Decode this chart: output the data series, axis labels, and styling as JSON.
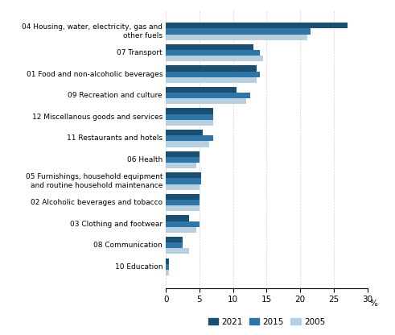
{
  "categories": [
    "04 Housing, water, electricity, gas and\nother fuels",
    "07 Transport",
    "01 Food and non-alcoholic beverages",
    "09 Recreation and culture",
    "12 Miscellanous goods and services",
    "11 Restaurants and hotels",
    "06 Health",
    "05 Furnishings, household equipment\nand routine household maintenance",
    "02 Alcoholic beverages and tobacco",
    "03 Clothing and footwear",
    "08 Communication",
    "10 Education"
  ],
  "values_2021": [
    27.0,
    13.0,
    13.5,
    10.5,
    7.0,
    5.5,
    5.0,
    5.2,
    5.0,
    3.5,
    2.5,
    0.5
  ],
  "values_2015": [
    21.5,
    14.0,
    14.0,
    12.5,
    7.0,
    7.0,
    5.0,
    5.2,
    5.0,
    5.0,
    2.5,
    0.5
  ],
  "values_2005": [
    21.0,
    14.5,
    13.5,
    12.0,
    7.0,
    6.5,
    4.5,
    5.0,
    5.0,
    4.5,
    3.5,
    0.5
  ],
  "color_2021": "#1a4f72",
  "color_2015": "#2e75a8",
  "color_2005": "#b8cfe0",
  "xlim": [
    0,
    30
  ],
  "xticks": [
    0,
    5,
    10,
    15,
    20,
    25,
    30
  ],
  "legend_labels": [
    "2021",
    "2015",
    "2005"
  ],
  "bar_height": 0.27,
  "figsize": [
    4.91,
    4.16
  ],
  "dpi": 100
}
